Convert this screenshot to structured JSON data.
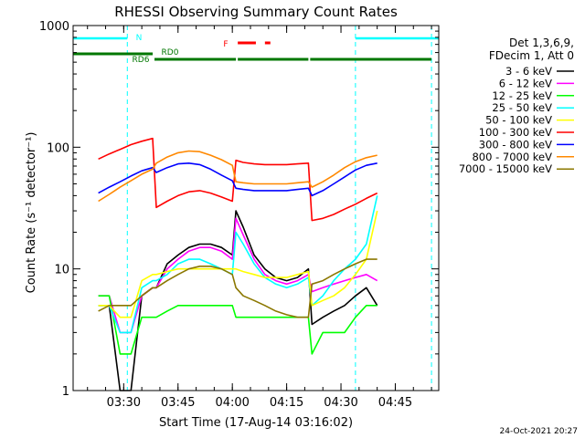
{
  "chart_data": {
    "type": "line",
    "title": "RHESSI Observing Summary Count Rates",
    "xlabel": "Start Time (17-Aug-14 03:16:02)",
    "ylabel": "Count Rate (s⁻¹ detector⁻¹)",
    "y_scale": "log",
    "ylim": [
      1,
      1000
    ],
    "xlim": [
      "03:16:02",
      "04:57:00"
    ],
    "x_ticks": [
      "03:30",
      "03:45",
      "04:00",
      "04:15",
      "04:30",
      "04:45"
    ],
    "y_ticks": [
      "1",
      "10",
      "100",
      "1000"
    ],
    "grid": false,
    "legend_position": "right",
    "legend_header": [
      "Det 1,3,6,9,",
      "FDecim 1, Att 0"
    ],
    "footer_timestamp": "24-Oct-2021 20:27",
    "colors": {
      "n_flag": "#00ffff",
      "saa_flag": "#007700",
      "f_flag": "#ff0000",
      "axes": "#000000",
      "background": "#ffffff"
    },
    "flags": {
      "N": {
        "label": "N",
        "color": "#00ffff",
        "intervals": [
          [
            "03:16:02",
            "03:31:00"
          ],
          [
            "04:34:00",
            "04:57:00"
          ]
        ]
      },
      "RD6": {
        "label": "RD6",
        "color": "#007700",
        "intervals": [
          [
            "03:16:02",
            "03:38:00"
          ]
        ]
      },
      "RD0": {
        "label": "RD0",
        "color": "#007700",
        "intervals": [
          [
            "03:38:30",
            "04:01:00"
          ],
          [
            "04:01:30",
            "04:21:00"
          ],
          [
            "04:21:30",
            "04:55:00"
          ]
        ]
      },
      "F": {
        "label": "F",
        "color": "#ff0000",
        "intervals": [
          [
            "04:01:30",
            "04:06:30"
          ],
          [
            "04:09:00",
            "04:10:30"
          ]
        ]
      }
    },
    "night_markers": [
      "03:31:00",
      "04:34:00",
      "04:55:00"
    ],
    "x": [
      "03:23",
      "03:26",
      "03:29",
      "03:32",
      "03:35",
      "03:38",
      "03:39",
      "03:42",
      "03:45",
      "03:48",
      "03:51",
      "03:54",
      "03:57",
      "04:00",
      "04:01",
      "04:03",
      "04:06",
      "04:09",
      "04:12",
      "04:15",
      "04:18",
      "04:21",
      "04:22",
      "04:25",
      "04:28",
      "04:31",
      "04:34",
      "04:37",
      "04:40"
    ],
    "series": [
      {
        "name": "3 - 6 keV",
        "color": "#000000",
        "values": [
          5,
          5,
          1,
          1,
          6,
          7,
          7,
          11,
          13,
          15,
          16,
          16,
          15,
          13,
          30,
          22,
          13,
          10,
          8.5,
          8,
          8.5,
          10,
          3.5,
          4,
          4.5,
          5,
          6,
          7,
          5
        ]
      },
      {
        "name": "6 - 12 keV",
        "color": "#ff00ff",
        "values": [
          6,
          6,
          3,
          3,
          6,
          7,
          7,
          10,
          12,
          14,
          15,
          15,
          14,
          12,
          26,
          19,
          12,
          9,
          8,
          7.5,
          8,
          9,
          6.5,
          7,
          7.5,
          8,
          8.5,
          9,
          8
        ]
      },
      {
        "name": "12 - 25 keV",
        "color": "#00ff00",
        "values": [
          6,
          6,
          2,
          2,
          4,
          4,
          4,
          4.5,
          5,
          5,
          5,
          5,
          5,
          5,
          4,
          4,
          4,
          4,
          4,
          4,
          4,
          4,
          2,
          3,
          3,
          3,
          4,
          5,
          5
        ]
      },
      {
        "name": "25 - 50 keV",
        "color": "#00ffff",
        "values": [
          5,
          5,
          3,
          3,
          7,
          8,
          8,
          9,
          11,
          12,
          12,
          11,
          10,
          9,
          20,
          16,
          11,
          8.5,
          7.5,
          7,
          7.5,
          8.5,
          5,
          6,
          8,
          10,
          12,
          16,
          40
        ]
      },
      {
        "name": "50 - 100 keV",
        "color": "#ffff00",
        "values": [
          5,
          5,
          4,
          4,
          8,
          9,
          9,
          9.5,
          10,
          10,
          10,
          10,
          10,
          10,
          10,
          9.5,
          9,
          8.5,
          8.5,
          8.5,
          9,
          9.5,
          5,
          5.5,
          6,
          7,
          9,
          12,
          30
        ]
      },
      {
        "name": "100 - 300 keV",
        "color": "#ff0000",
        "values": [
          80,
          88,
          96,
          105,
          112,
          118,
          32,
          36,
          40,
          43,
          44,
          42,
          39,
          36,
          78,
          75,
          73,
          72,
          72,
          72,
          73,
          74,
          25,
          26,
          28,
          31,
          34,
          38,
          42
        ]
      },
      {
        "name": "300 - 800 keV",
        "color": "#0000ff",
        "values": [
          42,
          47,
          52,
          58,
          64,
          68,
          62,
          68,
          73,
          74,
          72,
          66,
          59,
          53,
          46,
          45,
          44,
          44,
          44,
          44,
          45,
          46,
          40,
          44,
          50,
          57,
          65,
          71,
          74
        ]
      },
      {
        "name": "800 - 7000 keV",
        "color": "#ff8800",
        "values": [
          36,
          41,
          47,
          53,
          60,
          66,
          74,
          83,
          90,
          93,
          92,
          86,
          79,
          71,
          52,
          51,
          50,
          50,
          50,
          50,
          51,
          52,
          47,
          52,
          59,
          68,
          76,
          82,
          86
        ]
      },
      {
        "name": "7000 - 15000 keV",
        "color": "#8b7700",
        "values": [
          4.5,
          5,
          5,
          5,
          6,
          7,
          7,
          8,
          9,
          10,
          10.5,
          10.5,
          10,
          9,
          7,
          6,
          5.5,
          5,
          4.5,
          4.2,
          4,
          4,
          7.5,
          8,
          9,
          10,
          11,
          12,
          12
        ]
      }
    ]
  }
}
